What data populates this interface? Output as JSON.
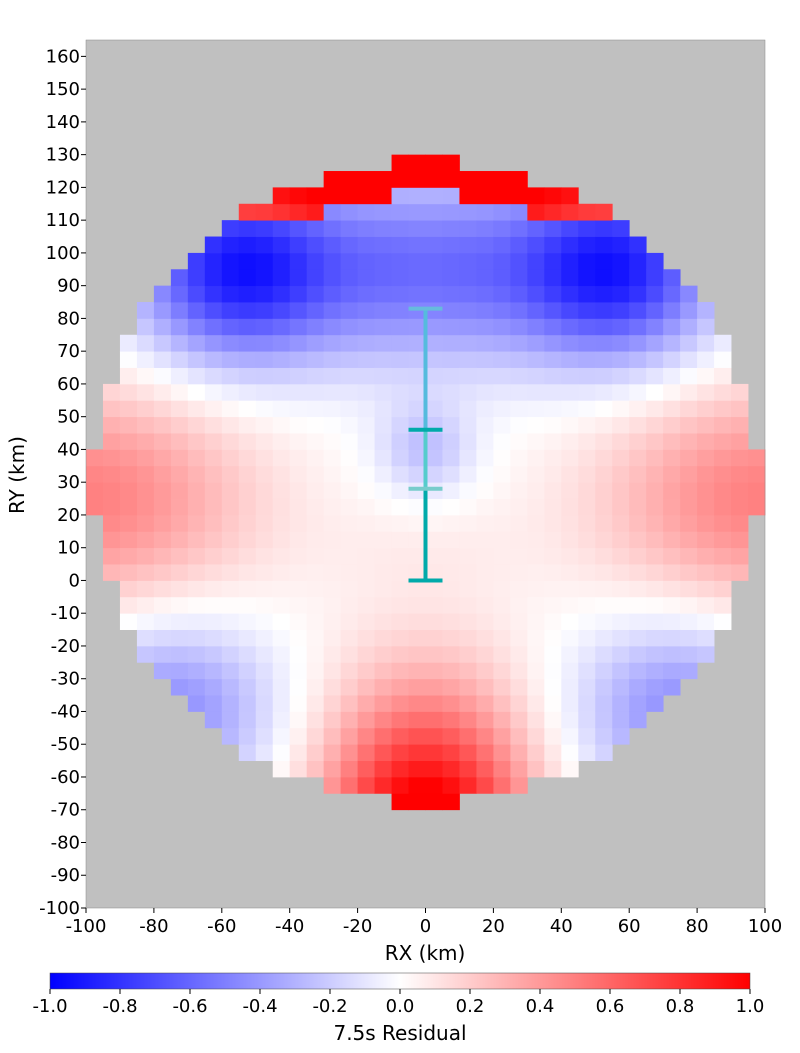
{
  "chart_data": {
    "type": "heatmap",
    "title": "",
    "xlabel": "RX (km)",
    "ylabel": "RY (km)",
    "xlim": [
      -100,
      100
    ],
    "ylim": [
      -100,
      165
    ],
    "x_ticks": [
      -100,
      -80,
      -60,
      -40,
      -20,
      0,
      20,
      40,
      60,
      80,
      100
    ],
    "y_ticks": [
      -100,
      -90,
      -80,
      -70,
      -60,
      -50,
      -40,
      -30,
      -20,
      -10,
      0,
      10,
      20,
      30,
      40,
      50,
      60,
      70,
      80,
      90,
      100,
      110,
      120,
      130,
      140,
      150,
      160
    ],
    "cell_size_km": 5,
    "domain_shape": "circle",
    "domain_center": [
      0,
      30
    ],
    "domain_radius_km": 98,
    "background_color": "#c0c0c0",
    "residual_model": "smooth-pattern",
    "colorbar": {
      "label": "7.5s Residual",
      "min": -1.0,
      "max": 1.0,
      "ticks": [
        "-1.0",
        "-0.8",
        "-0.6",
        "-0.4",
        "-0.2",
        "0.0",
        "0.2",
        "0.4",
        "0.6",
        "0.8",
        "1.0"
      ],
      "colors": {
        "negative": "#0000ff",
        "zero": "#ffffff",
        "positive": "#ff0000"
      }
    },
    "marker": {
      "x": 0,
      "segments": [
        {
          "y_start": 0,
          "y_end": 46,
          "color": "#00aaaa"
        },
        {
          "y_start": 28,
          "y_end": 46,
          "color": "#55cccc"
        },
        {
          "y_start": 46,
          "y_end": 83,
          "color": "#55bbdd"
        }
      ],
      "caps": [
        0,
        28,
        46,
        83
      ]
    }
  }
}
